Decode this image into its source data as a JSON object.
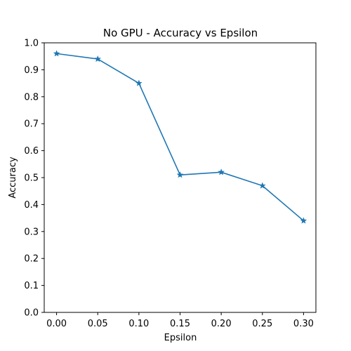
{
  "chart_data": {
    "type": "line",
    "title": "No GPU - Accuracy vs Epsilon",
    "xlabel": "Epsilon",
    "ylabel": "Accuracy",
    "x": [
      0.0,
      0.05,
      0.1,
      0.15,
      0.2,
      0.25,
      0.3
    ],
    "series": [
      {
        "values": [
          0.96,
          0.94,
          0.85,
          0.51,
          0.52,
          0.47,
          0.34
        ]
      }
    ],
    "xlim": [
      -0.015,
      0.315
    ],
    "ylim": [
      0.0,
      1.0
    ],
    "xticks": [
      0.0,
      0.05,
      0.1,
      0.15,
      0.2,
      0.25,
      0.3
    ],
    "xtick_labels": [
      "0.00",
      "0.05",
      "0.10",
      "0.15",
      "0.20",
      "0.25",
      "0.30"
    ],
    "yticks": [
      0.0,
      0.1,
      0.2,
      0.3,
      0.4,
      0.5,
      0.6,
      0.7,
      0.8,
      0.9,
      1.0
    ],
    "ytick_labels": [
      "0.0",
      "0.1",
      "0.2",
      "0.3",
      "0.4",
      "0.5",
      "0.6",
      "0.7",
      "0.8",
      "0.9",
      "1.0"
    ],
    "marker": "star",
    "grid": false,
    "line_color": "#1f77b4"
  }
}
